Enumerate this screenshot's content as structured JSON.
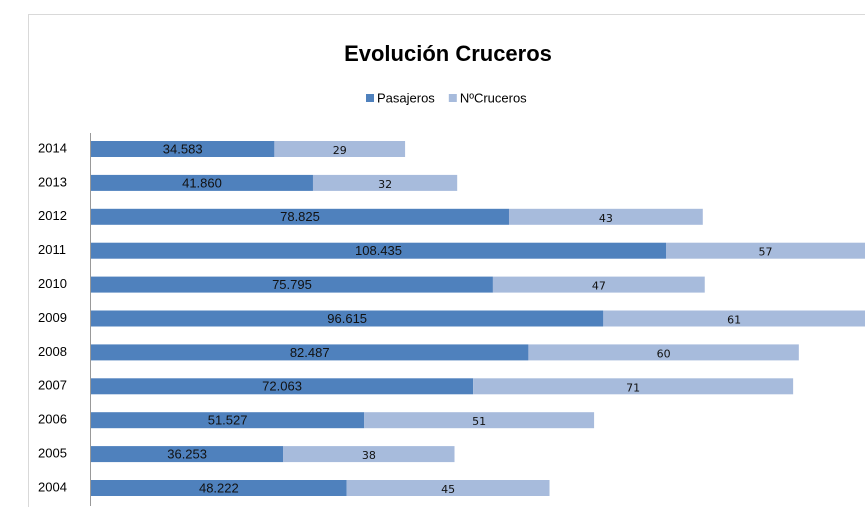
{
  "chart_data": {
    "type": "stacked-bar-horizontal",
    "title": "Evolución Cruceros",
    "categories": [
      "2014",
      "2013",
      "2012",
      "2011",
      "2010",
      "2009",
      "2008",
      "2007",
      "2006",
      "2005",
      "2004"
    ],
    "series": [
      {
        "name": "Pasajeros",
        "color": "#4f81bd",
        "values": [
          34583,
          41860,
          78825,
          108435,
          75795,
          96615,
          82487,
          72063,
          51527,
          36253,
          48222
        ],
        "value_labels": [
          "34.583",
          "41.860",
          "78.825",
          "108.435",
          "75.795",
          "96.615",
          "82.487",
          "72.063",
          "51.527",
          "36.253",
          "48.222"
        ]
      },
      {
        "name": "NºCruceros",
        "color": "#a7bbdc",
        "axis": "x2",
        "values": [
          29,
          32,
          43,
          57,
          47,
          61,
          60,
          71,
          51,
          38,
          45
        ]
      }
    ],
    "legend": "top"
  }
}
